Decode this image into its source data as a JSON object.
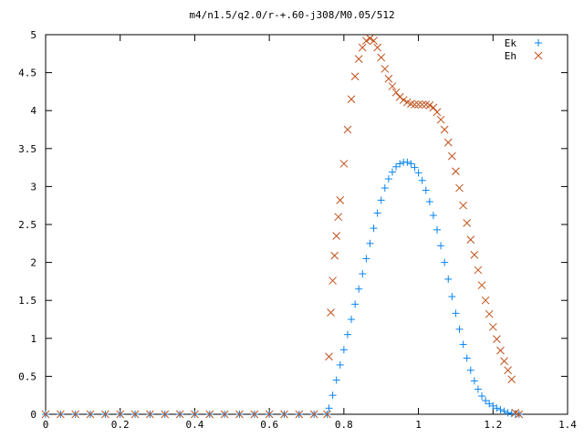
{
  "chart_data": {
    "type": "scatter",
    "title": "m4/n1.5/q2.0/r-+.60-j308/M0.05/512",
    "xlabel": "",
    "ylabel": "",
    "xlim": [
      0,
      1.4
    ],
    "ylim": [
      0,
      5
    ],
    "grid": false,
    "legend_position": "top-right",
    "x_ticks": [
      "0",
      "0.2",
      "0.4",
      "0.6",
      "0.8",
      "1",
      "1.2",
      "1.4"
    ],
    "y_ticks": [
      "0",
      "0.5",
      "1",
      "1.5",
      "2",
      "2.5",
      "3",
      "3.5",
      "4",
      "4.5",
      "5"
    ],
    "series": [
      {
        "name": "Ek",
        "marker": "plus",
        "color": "#0a84f0",
        "x": [
          0.0,
          0.04,
          0.08,
          0.12,
          0.16,
          0.2,
          0.24,
          0.28,
          0.32,
          0.36,
          0.4,
          0.44,
          0.48,
          0.52,
          0.56,
          0.6,
          0.64,
          0.68,
          0.72,
          0.755,
          0.76,
          0.77,
          0.78,
          0.79,
          0.8,
          0.81,
          0.82,
          0.83,
          0.84,
          0.85,
          0.86,
          0.87,
          0.88,
          0.89,
          0.9,
          0.91,
          0.92,
          0.93,
          0.94,
          0.95,
          0.96,
          0.97,
          0.98,
          0.99,
          1.0,
          1.01,
          1.02,
          1.03,
          1.04,
          1.05,
          1.06,
          1.07,
          1.08,
          1.09,
          1.1,
          1.11,
          1.12,
          1.13,
          1.14,
          1.15,
          1.16,
          1.17,
          1.18,
          1.19,
          1.2,
          1.21,
          1.22,
          1.23,
          1.24,
          1.25,
          1.26,
          1.27
        ],
        "y": [
          0,
          0,
          0,
          0,
          0,
          0,
          0,
          0,
          0,
          0,
          0,
          0,
          0,
          0,
          0,
          0,
          0,
          0,
          0,
          0,
          0.08,
          0.25,
          0.45,
          0.65,
          0.85,
          1.05,
          1.25,
          1.45,
          1.65,
          1.85,
          2.05,
          2.25,
          2.45,
          2.65,
          2.82,
          2.98,
          3.1,
          3.19,
          3.26,
          3.3,
          3.32,
          3.32,
          3.3,
          3.25,
          3.18,
          3.08,
          2.95,
          2.8,
          2.62,
          2.43,
          2.22,
          2.0,
          1.78,
          1.55,
          1.33,
          1.12,
          0.92,
          0.74,
          0.58,
          0.44,
          0.33,
          0.24,
          0.18,
          0.14,
          0.11,
          0.08,
          0.06,
          0.04,
          0.02,
          0.01,
          0.005,
          0
        ]
      },
      {
        "name": "Eh",
        "marker": "cross",
        "color": "#c0511a",
        "x": [
          0.0,
          0.04,
          0.08,
          0.12,
          0.16,
          0.2,
          0.24,
          0.28,
          0.32,
          0.36,
          0.4,
          0.44,
          0.48,
          0.52,
          0.56,
          0.6,
          0.64,
          0.68,
          0.72,
          0.755,
          0.76,
          0.765,
          0.77,
          0.775,
          0.78,
          0.785,
          0.79,
          0.8,
          0.81,
          0.82,
          0.83,
          0.84,
          0.85,
          0.86,
          0.87,
          0.88,
          0.89,
          0.9,
          0.91,
          0.92,
          0.93,
          0.94,
          0.95,
          0.96,
          0.97,
          0.98,
          0.99,
          1.0,
          1.01,
          1.02,
          1.03,
          1.04,
          1.05,
          1.06,
          1.07,
          1.08,
          1.09,
          1.1,
          1.11,
          1.12,
          1.13,
          1.14,
          1.15,
          1.16,
          1.17,
          1.18,
          1.19,
          1.2,
          1.21,
          1.22,
          1.23,
          1.24,
          1.25,
          1.26,
          1.27
        ],
        "y": [
          0,
          0,
          0,
          0,
          0,
          0,
          0,
          0,
          0,
          0,
          0,
          0,
          0,
          0,
          0,
          0,
          0,
          0,
          0,
          0,
          0.76,
          1.34,
          1.76,
          2.09,
          2.35,
          2.6,
          2.82,
          3.3,
          3.75,
          4.15,
          4.45,
          4.68,
          4.83,
          4.92,
          4.95,
          4.92,
          4.83,
          4.7,
          4.55,
          4.42,
          4.32,
          4.24,
          4.18,
          4.14,
          4.11,
          4.09,
          4.08,
          4.08,
          4.08,
          4.08,
          4.07,
          4.04,
          3.98,
          3.88,
          3.75,
          3.58,
          3.4,
          3.2,
          2.98,
          2.75,
          2.52,
          2.3,
          2.1,
          1.9,
          1.7,
          1.5,
          1.32,
          1.15,
          0.99,
          0.84,
          0.7,
          0.58,
          0.46,
          0.02,
          0
        ]
      }
    ]
  }
}
